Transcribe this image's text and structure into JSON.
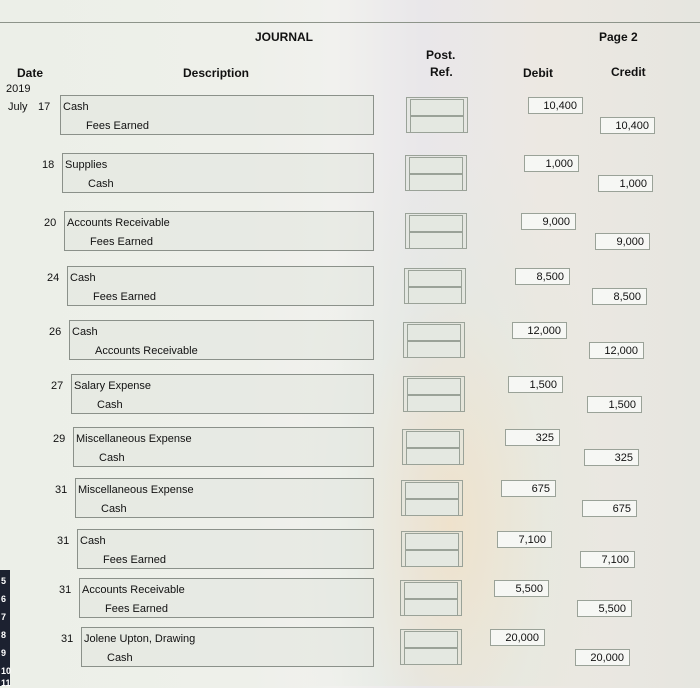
{
  "header": {
    "title": "JOURNAL",
    "page": "Page 2",
    "col_date": "Date",
    "col_description": "Description",
    "col_post": "Post.",
    "col_ref": "Ref.",
    "col_debit": "Debit",
    "col_credit": "Credit",
    "year": "2019",
    "month": "July"
  },
  "entries": [
    {
      "day": "17",
      "debit_account": "Cash",
      "credit_account": "Fees Earned",
      "debit": "10,400",
      "credit": "10,400"
    },
    {
      "day": "18",
      "debit_account": "Supplies",
      "credit_account": "Cash",
      "debit": "1,000",
      "credit": "1,000"
    },
    {
      "day": "20",
      "debit_account": "Accounts Receivable",
      "credit_account": "Fees Earned",
      "debit": "9,000",
      "credit": "9,000"
    },
    {
      "day": "24",
      "debit_account": "Cash",
      "credit_account": "Fees Earned",
      "debit": "8,500",
      "credit": "8,500"
    },
    {
      "day": "26",
      "debit_account": "Cash",
      "credit_account": "Accounts Receivable",
      "debit": "12,000",
      "credit": "12,000"
    },
    {
      "day": "27",
      "debit_account": "Salary Expense",
      "credit_account": "Cash",
      "debit": "1,500",
      "credit": "1,500"
    },
    {
      "day": "29",
      "debit_account": "Miscellaneous Expense",
      "credit_account": "Cash",
      "debit": "325",
      "credit": "325"
    },
    {
      "day": "31",
      "debit_account": "Miscellaneous Expense",
      "credit_account": "Cash",
      "debit": "675",
      "credit": "675"
    },
    {
      "day": "31",
      "debit_account": "Cash",
      "credit_account": "Fees Earned",
      "debit": "7,100",
      "credit": "7,100"
    },
    {
      "day": "31",
      "debit_account": "Accounts Receivable",
      "credit_account": "Fees Earned",
      "debit": "5,500",
      "credit": "5,500"
    },
    {
      "day": "31",
      "debit_account": "Jolene Upton, Drawing",
      "credit_account": "Cash",
      "debit": "20,000",
      "credit": "20,000"
    }
  ],
  "gutter_numbers": [
    "5",
    "6",
    "7",
    "8",
    "9",
    "10",
    "11"
  ]
}
